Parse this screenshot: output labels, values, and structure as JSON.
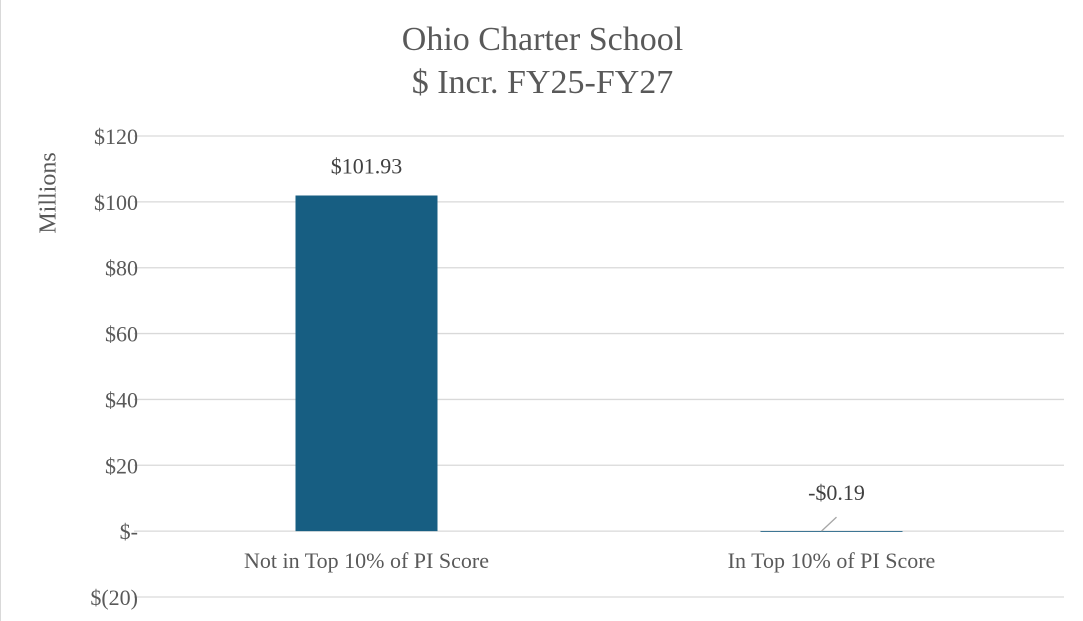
{
  "chart_data": {
    "type": "bar",
    "title": [
      "Ohio Charter School",
      "$ Incr. FY25-FY27"
    ],
    "ylabel": "Millions",
    "xlabel": "",
    "categories": [
      "Not in Top 10% of PI Score",
      "In Top 10% of PI Score"
    ],
    "values": [
      101.93,
      -0.19
    ],
    "data_labels": [
      "$101.93",
      "-$0.19"
    ],
    "ylim": [
      -20,
      120
    ],
    "yticks": [
      120,
      100,
      80,
      60,
      40,
      20,
      0,
      -20
    ],
    "ytick_labels": [
      "$120",
      "$100",
      "$80",
      "$60",
      "$40",
      "$20",
      "$-",
      "$(20)"
    ],
    "grid": true,
    "legend": "none",
    "colors": {
      "bar": "#175e82",
      "grid": "#d9d9d9",
      "text": "#595959",
      "label": "#404040",
      "leader": "#a6a6a6"
    }
  }
}
